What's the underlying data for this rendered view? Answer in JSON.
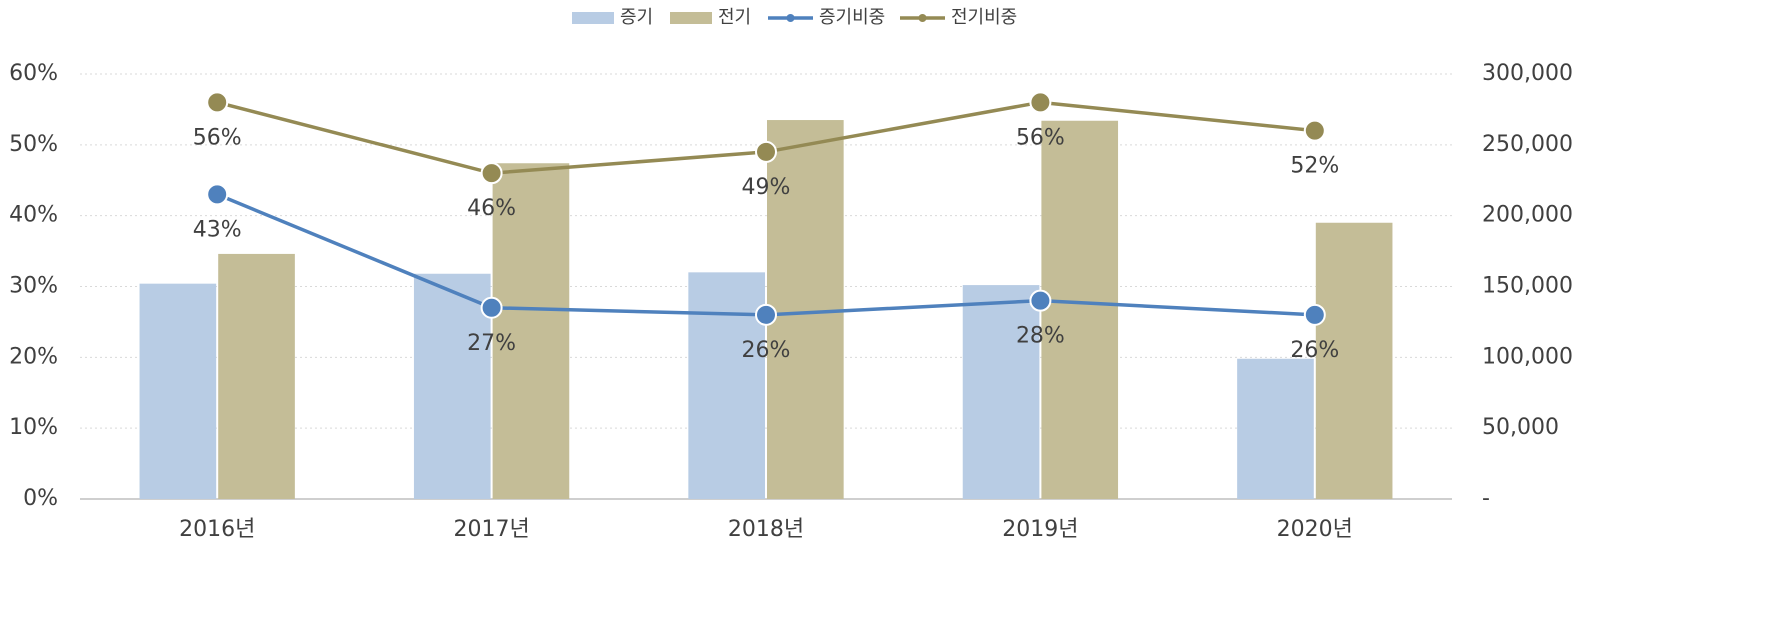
{
  "chart_data": {
    "type": "bar-line",
    "categories": [
      "2016년",
      "2017년",
      "2018년",
      "2019년",
      "2020년"
    ],
    "series": [
      {
        "name": "증기",
        "type": "bar",
        "axis": "y2",
        "color": "#b8cce4",
        "values": [
          152000,
          159000,
          160000,
          151000,
          99000
        ]
      },
      {
        "name": "전기",
        "type": "bar",
        "axis": "y2",
        "color": "#c4bd97",
        "values": [
          173000,
          237000,
          267500,
          267000,
          195000
        ]
      },
      {
        "name": "증기비중",
        "type": "line",
        "axis": "y",
        "color": "#4f81bd",
        "values": [
          43,
          27,
          26,
          28,
          26
        ],
        "value_labels": [
          "43%",
          "27%",
          "26%",
          "28%",
          "26%"
        ]
      },
      {
        "name": "전기비중",
        "type": "line",
        "axis": "y",
        "color": "#948a54",
        "values": [
          56,
          46,
          49,
          56,
          52
        ],
        "value_labels": [
          "56%",
          "46%",
          "49%",
          "56%",
          "52%"
        ]
      }
    ],
    "ylim": [
      0,
      60
    ],
    "yticks": [
      {
        "value": 0,
        "label": "0%"
      },
      {
        "value": 10,
        "label": "10%"
      },
      {
        "value": 20,
        "label": "20%"
      },
      {
        "value": 30,
        "label": "30%"
      },
      {
        "value": 40,
        "label": "40%"
      },
      {
        "value": 50,
        "label": "50%"
      },
      {
        "value": 60,
        "label": "60%"
      }
    ],
    "y2lim": [
      0,
      300000
    ],
    "y2ticks": [
      {
        "value": 0,
        "label": "-"
      },
      {
        "value": 50000,
        "label": "50,000"
      },
      {
        "value": 100000,
        "label": "100,000"
      },
      {
        "value": 150000,
        "label": "150,000"
      },
      {
        "value": 200000,
        "label": "200,000"
      },
      {
        "value": 250000,
        "label": "250,000"
      },
      {
        "value": 300000,
        "label": "300,000"
      }
    ],
    "grid": true,
    "legend": "top"
  }
}
